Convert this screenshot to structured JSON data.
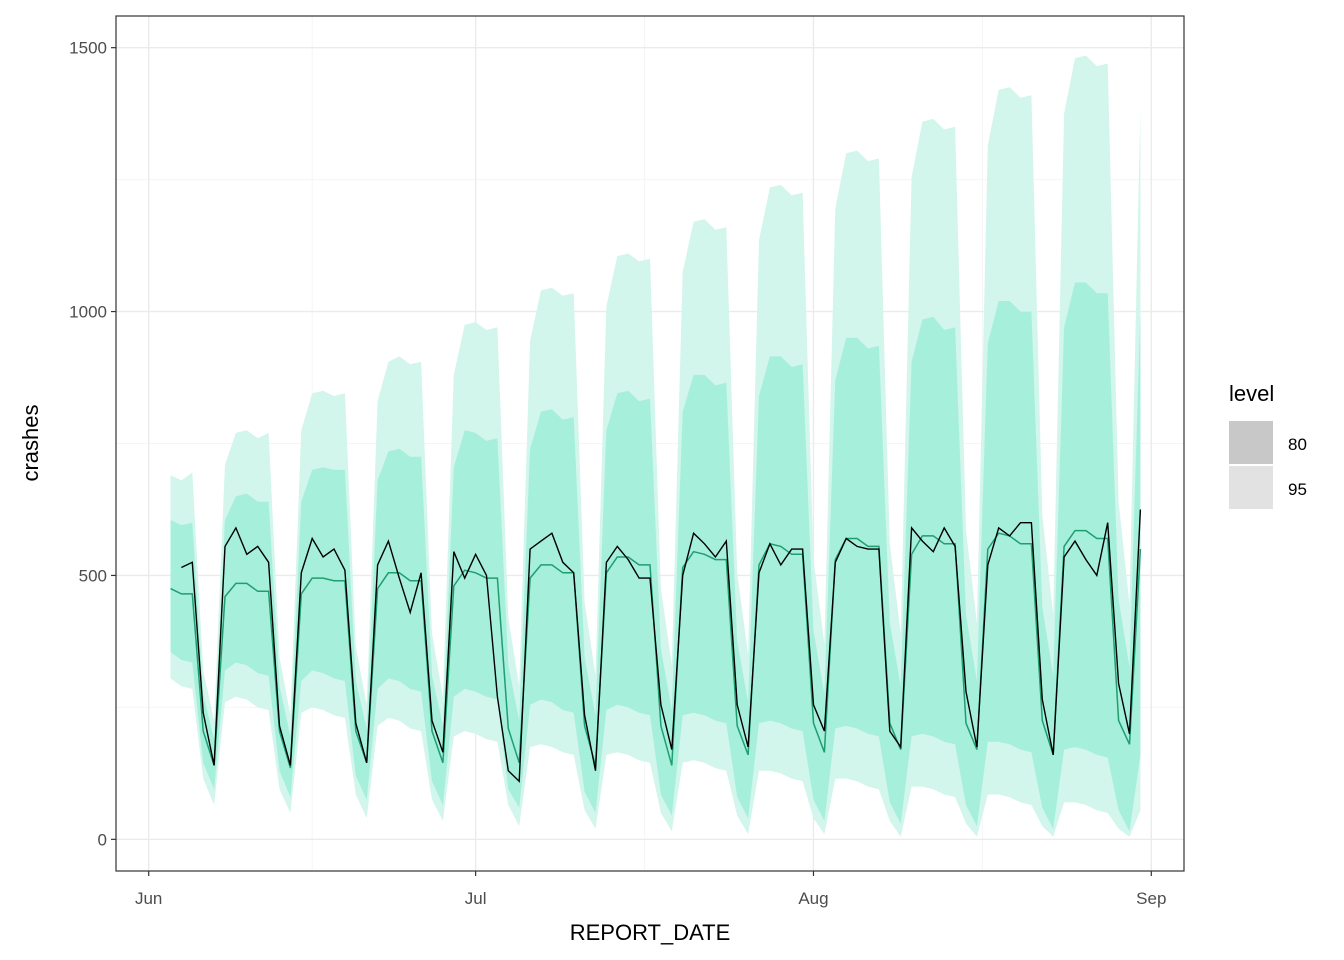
{
  "chart_data": {
    "type": "line",
    "xlabel": "REPORT_DATE",
    "ylabel": "crashes",
    "x_tick_labels": [
      "Jun",
      "Jul",
      "Aug",
      "Sep"
    ],
    "x_tick_dates": [
      "2018-06-01",
      "2018-07-01",
      "2018-08-01",
      "2018-09-01"
    ],
    "x_range": [
      "2018-05-29",
      "2018-09-04"
    ],
    "y_ticks": [
      0,
      500,
      1000,
      1500
    ],
    "y_tick_labels": [
      "0",
      "500",
      "1000",
      "1500"
    ],
    "ylim": [
      -60,
      1560
    ],
    "grid": true,
    "legend": {
      "title": "level",
      "position": "right",
      "entries": [
        {
          "label": "80",
          "color": "#c8c8c8"
        },
        {
          "label": "95",
          "color": "#e2e2e2"
        }
      ]
    },
    "colors": {
      "band95": "#d2f5ec",
      "band80": "#a6efdb",
      "forecast_line": "#1f9e6f",
      "actual_line": "#000000",
      "panel_border": "#333333",
      "grid_major": "#ebebeb",
      "grid_minor": "#f5f5f5"
    },
    "series": [
      {
        "name": "forecast_mean",
        "x": [
          "2018-06-03",
          "2018-06-04",
          "2018-06-05",
          "2018-06-06",
          "2018-06-07",
          "2018-06-08",
          "2018-06-09",
          "2018-06-10",
          "2018-06-11",
          "2018-06-12",
          "2018-06-13",
          "2018-06-14",
          "2018-06-15",
          "2018-06-16",
          "2018-06-17",
          "2018-06-18",
          "2018-06-19",
          "2018-06-20",
          "2018-06-21",
          "2018-06-22",
          "2018-06-23",
          "2018-06-24",
          "2018-06-25",
          "2018-06-26",
          "2018-06-27",
          "2018-06-28",
          "2018-06-29",
          "2018-06-30",
          "2018-07-01",
          "2018-07-02",
          "2018-07-03",
          "2018-07-04",
          "2018-07-05",
          "2018-07-06",
          "2018-07-07",
          "2018-07-08",
          "2018-07-09",
          "2018-07-10",
          "2018-07-11",
          "2018-07-12",
          "2018-07-13",
          "2018-07-14",
          "2018-07-15",
          "2018-07-16",
          "2018-07-17",
          "2018-07-18",
          "2018-07-19",
          "2018-07-20",
          "2018-07-21",
          "2018-07-22",
          "2018-07-23",
          "2018-07-24",
          "2018-07-25",
          "2018-07-26",
          "2018-07-27",
          "2018-07-28",
          "2018-07-29",
          "2018-07-30",
          "2018-07-31",
          "2018-08-01",
          "2018-08-02",
          "2018-08-03",
          "2018-08-04",
          "2018-08-05",
          "2018-08-06",
          "2018-08-07",
          "2018-08-08",
          "2018-08-09",
          "2018-08-10",
          "2018-08-11",
          "2018-08-12",
          "2018-08-13",
          "2018-08-14",
          "2018-08-15",
          "2018-08-16",
          "2018-08-17",
          "2018-08-18",
          "2018-08-19",
          "2018-08-20",
          "2018-08-21",
          "2018-08-22",
          "2018-08-23",
          "2018-08-24",
          "2018-08-25",
          "2018-08-26",
          "2018-08-27",
          "2018-08-28",
          "2018-08-29",
          "2018-08-30",
          "2018-08-31"
        ],
        "values": [
          475,
          465,
          465,
          205,
          140,
          460,
          485,
          485,
          470,
          470,
          205,
          135,
          465,
          495,
          495,
          490,
          490,
          205,
          145,
          475,
          505,
          505,
          490,
          490,
          205,
          145,
          480,
          510,
          505,
          495,
          495,
          210,
          145,
          495,
          520,
          520,
          505,
          505,
          215,
          140,
          505,
          535,
          535,
          520,
          520,
          215,
          140,
          515,
          545,
          540,
          530,
          530,
          215,
          160,
          520,
          560,
          555,
          540,
          540,
          220,
          165,
          530,
          570,
          570,
          555,
          555,
          220,
          170,
          540,
          575,
          575,
          560,
          560,
          220,
          170,
          550,
          580,
          575,
          560,
          560,
          225,
          160,
          555,
          585,
          585,
          570,
          570,
          225,
          180,
          550
        ]
      },
      {
        "name": "actual",
        "x": [
          "2018-06-04",
          "2018-06-05",
          "2018-06-06",
          "2018-06-07",
          "2018-06-08",
          "2018-06-09",
          "2018-06-10",
          "2018-06-11",
          "2018-06-12",
          "2018-06-13",
          "2018-06-14",
          "2018-06-15",
          "2018-06-16",
          "2018-06-17",
          "2018-06-18",
          "2018-06-19",
          "2018-06-20",
          "2018-06-21",
          "2018-06-22",
          "2018-06-23",
          "2018-06-24",
          "2018-06-25",
          "2018-06-26",
          "2018-06-27",
          "2018-06-28",
          "2018-06-29",
          "2018-06-30",
          "2018-07-01",
          "2018-07-02",
          "2018-07-03",
          "2018-07-04",
          "2018-07-05",
          "2018-07-06",
          "2018-07-07",
          "2018-07-08",
          "2018-07-09",
          "2018-07-10",
          "2018-07-11",
          "2018-07-12",
          "2018-07-13",
          "2018-07-14",
          "2018-07-15",
          "2018-07-16",
          "2018-07-17",
          "2018-07-18",
          "2018-07-19",
          "2018-07-20",
          "2018-07-21",
          "2018-07-22",
          "2018-07-23",
          "2018-07-24",
          "2018-07-25",
          "2018-07-26",
          "2018-07-27",
          "2018-07-28",
          "2018-07-29",
          "2018-07-30",
          "2018-07-31",
          "2018-08-01",
          "2018-08-02",
          "2018-08-03",
          "2018-08-04",
          "2018-08-05",
          "2018-08-06",
          "2018-08-07",
          "2018-08-08",
          "2018-08-09",
          "2018-08-10",
          "2018-08-11",
          "2018-08-12",
          "2018-08-13",
          "2018-08-14",
          "2018-08-15",
          "2018-08-16",
          "2018-08-17",
          "2018-08-18",
          "2018-08-19",
          "2018-08-20",
          "2018-08-21",
          "2018-08-22",
          "2018-08-23",
          "2018-08-24",
          "2018-08-25",
          "2018-08-26",
          "2018-08-27",
          "2018-08-28",
          "2018-08-29",
          "2018-08-30",
          "2018-08-31"
        ],
        "values": [
          515,
          525,
          240,
          140,
          555,
          590,
          540,
          555,
          525,
          215,
          140,
          505,
          570,
          535,
          550,
          510,
          220,
          145,
          520,
          565,
          495,
          430,
          505,
          225,
          165,
          545,
          495,
          540,
          500,
          270,
          130,
          110,
          550,
          565,
          580,
          525,
          505,
          235,
          130,
          525,
          555,
          530,
          495,
          495,
          255,
          170,
          500,
          580,
          560,
          535,
          565,
          255,
          175,
          505,
          560,
          520,
          550,
          550,
          255,
          205,
          525,
          570,
          555,
          550,
          550,
          205,
          175,
          590,
          565,
          545,
          590,
          555,
          280,
          175,
          520,
          590,
          575,
          600,
          600,
          265,
          160,
          535,
          565,
          530,
          500,
          600,
          295,
          200,
          625
        ]
      },
      {
        "name": "80",
        "x": [
          "2018-06-03",
          "2018-06-04",
          "2018-06-05",
          "2018-06-06",
          "2018-06-07",
          "2018-06-08",
          "2018-06-09",
          "2018-06-10",
          "2018-06-11",
          "2018-06-12",
          "2018-06-13",
          "2018-06-14",
          "2018-06-15",
          "2018-06-16",
          "2018-06-17",
          "2018-06-18",
          "2018-06-19",
          "2018-06-20",
          "2018-06-21",
          "2018-06-22",
          "2018-06-23",
          "2018-06-24",
          "2018-06-25",
          "2018-06-26",
          "2018-06-27",
          "2018-06-28",
          "2018-06-29",
          "2018-06-30",
          "2018-07-01",
          "2018-07-02",
          "2018-07-03",
          "2018-07-04",
          "2018-07-05",
          "2018-07-06",
          "2018-07-07",
          "2018-07-08",
          "2018-07-09",
          "2018-07-10",
          "2018-07-11",
          "2018-07-12",
          "2018-07-13",
          "2018-07-14",
          "2018-07-15",
          "2018-07-16",
          "2018-07-17",
          "2018-07-18",
          "2018-07-19",
          "2018-07-20",
          "2018-07-21",
          "2018-07-22",
          "2018-07-23",
          "2018-07-24",
          "2018-07-25",
          "2018-07-26",
          "2018-07-27",
          "2018-07-28",
          "2018-07-29",
          "2018-07-30",
          "2018-07-31",
          "2018-08-01",
          "2018-08-02",
          "2018-08-03",
          "2018-08-04",
          "2018-08-05",
          "2018-08-06",
          "2018-08-07",
          "2018-08-08",
          "2018-08-09",
          "2018-08-10",
          "2018-08-11",
          "2018-08-12",
          "2018-08-13",
          "2018-08-14",
          "2018-08-15",
          "2018-08-16",
          "2018-08-17",
          "2018-08-18",
          "2018-08-19",
          "2018-08-20",
          "2018-08-21",
          "2018-08-22",
          "2018-08-23",
          "2018-08-24",
          "2018-08-25",
          "2018-08-26",
          "2018-08-27",
          "2018-08-28",
          "2018-08-29",
          "2018-08-30",
          "2018-08-31"
        ],
        "lower": [
          355,
          340,
          335,
          145,
          95,
          320,
          335,
          330,
          315,
          310,
          130,
          80,
          300,
          320,
          315,
          305,
          300,
          120,
          75,
          285,
          305,
          300,
          285,
          280,
          110,
          65,
          270,
          285,
          280,
          270,
          265,
          95,
          60,
          255,
          265,
          260,
          245,
          240,
          90,
          50,
          245,
          255,
          250,
          240,
          235,
          85,
          45,
          235,
          240,
          235,
          225,
          220,
          80,
          40,
          220,
          225,
          220,
          210,
          205,
          75,
          35,
          210,
          215,
          210,
          200,
          195,
          70,
          30,
          195,
          200,
          195,
          185,
          180,
          65,
          25,
          185,
          185,
          180,
          170,
          165,
          60,
          20,
          170,
          175,
          170,
          160,
          155,
          55,
          15,
          160
        ],
        "upper": [
          605,
          595,
          600,
          275,
          190,
          605,
          650,
          655,
          640,
          640,
          290,
          195,
          640,
          700,
          705,
          700,
          700,
          300,
          210,
          680,
          735,
          740,
          725,
          725,
          310,
          215,
          705,
          775,
          770,
          755,
          760,
          330,
          225,
          740,
          810,
          815,
          795,
          800,
          345,
          235,
          775,
          845,
          850,
          830,
          835,
          360,
          245,
          810,
          880,
          880,
          860,
          865,
          375,
          260,
          840,
          915,
          915,
          895,
          900,
          395,
          275,
          870,
          950,
          950,
          930,
          935,
          410,
          290,
          905,
          985,
          990,
          965,
          970,
          425,
          300,
          940,
          1020,
          1020,
          1000,
          1000,
          440,
          310,
          970,
          1055,
          1055,
          1035,
          1035,
          455,
          325,
          1000
        ]
      },
      {
        "name": "95",
        "x": [
          "2018-06-03",
          "2018-06-04",
          "2018-06-05",
          "2018-06-06",
          "2018-06-07",
          "2018-06-08",
          "2018-06-09",
          "2018-06-10",
          "2018-06-11",
          "2018-06-12",
          "2018-06-13",
          "2018-06-14",
          "2018-06-15",
          "2018-06-16",
          "2018-06-17",
          "2018-06-18",
          "2018-06-19",
          "2018-06-20",
          "2018-06-21",
          "2018-06-22",
          "2018-06-23",
          "2018-06-24",
          "2018-06-25",
          "2018-06-26",
          "2018-06-27",
          "2018-06-28",
          "2018-06-29",
          "2018-06-30",
          "2018-07-01",
          "2018-07-02",
          "2018-07-03",
          "2018-07-04",
          "2018-07-05",
          "2018-07-06",
          "2018-07-07",
          "2018-07-08",
          "2018-07-09",
          "2018-07-10",
          "2018-07-11",
          "2018-07-12",
          "2018-07-13",
          "2018-07-14",
          "2018-07-15",
          "2018-07-16",
          "2018-07-17",
          "2018-07-18",
          "2018-07-19",
          "2018-07-20",
          "2018-07-21",
          "2018-07-22",
          "2018-07-23",
          "2018-07-24",
          "2018-07-25",
          "2018-07-26",
          "2018-07-27",
          "2018-07-28",
          "2018-07-29",
          "2018-07-30",
          "2018-07-31",
          "2018-08-01",
          "2018-08-02",
          "2018-08-03",
          "2018-08-04",
          "2018-08-05",
          "2018-08-06",
          "2018-08-07",
          "2018-08-08",
          "2018-08-09",
          "2018-08-10",
          "2018-08-11",
          "2018-08-12",
          "2018-08-13",
          "2018-08-14",
          "2018-08-15",
          "2018-08-16",
          "2018-08-17",
          "2018-08-18",
          "2018-08-19",
          "2018-08-20",
          "2018-08-21",
          "2018-08-22",
          "2018-08-23",
          "2018-08-24",
          "2018-08-25",
          "2018-08-26",
          "2018-08-27",
          "2018-08-28",
          "2018-08-29",
          "2018-08-30",
          "2018-08-31"
        ],
        "lower": [
          305,
          290,
          285,
          115,
          65,
          260,
          270,
          265,
          250,
          245,
          95,
          50,
          240,
          250,
          245,
          235,
          230,
          85,
          40,
          215,
          230,
          225,
          210,
          205,
          75,
          35,
          195,
          205,
          200,
          190,
          185,
          65,
          25,
          175,
          180,
          175,
          165,
          160,
          55,
          20,
          160,
          165,
          160,
          150,
          145,
          50,
          15,
          145,
          150,
          145,
          135,
          130,
          45,
          10,
          130,
          130,
          125,
          115,
          110,
          40,
          10,
          115,
          115,
          110,
          100,
          95,
          35,
          5,
          100,
          100,
          95,
          85,
          80,
          30,
          5,
          85,
          85,
          80,
          70,
          65,
          25,
          5,
          70,
          70,
          65,
          55,
          50,
          20,
          5,
          55
        ],
        "upper": [
          690,
          680,
          695,
          320,
          225,
          710,
          770,
          775,
          760,
          770,
          345,
          235,
          775,
          845,
          850,
          840,
          845,
          365,
          255,
          830,
          905,
          915,
          900,
          905,
          390,
          270,
          880,
          975,
          980,
          965,
          970,
          420,
          290,
          945,
          1040,
          1045,
          1030,
          1035,
          450,
          310,
          1010,
          1105,
          1110,
          1095,
          1100,
          475,
          330,
          1075,
          1170,
          1175,
          1155,
          1160,
          505,
          350,
          1135,
          1235,
          1240,
          1220,
          1225,
          530,
          370,
          1195,
          1300,
          1305,
          1285,
          1290,
          560,
          390,
          1255,
          1360,
          1365,
          1345,
          1350,
          585,
          410,
          1315,
          1420,
          1425,
          1405,
          1410,
          615,
          425,
          1375,
          1480,
          1485,
          1465,
          1470,
          640,
          445,
          1385
        ]
      }
    ]
  }
}
